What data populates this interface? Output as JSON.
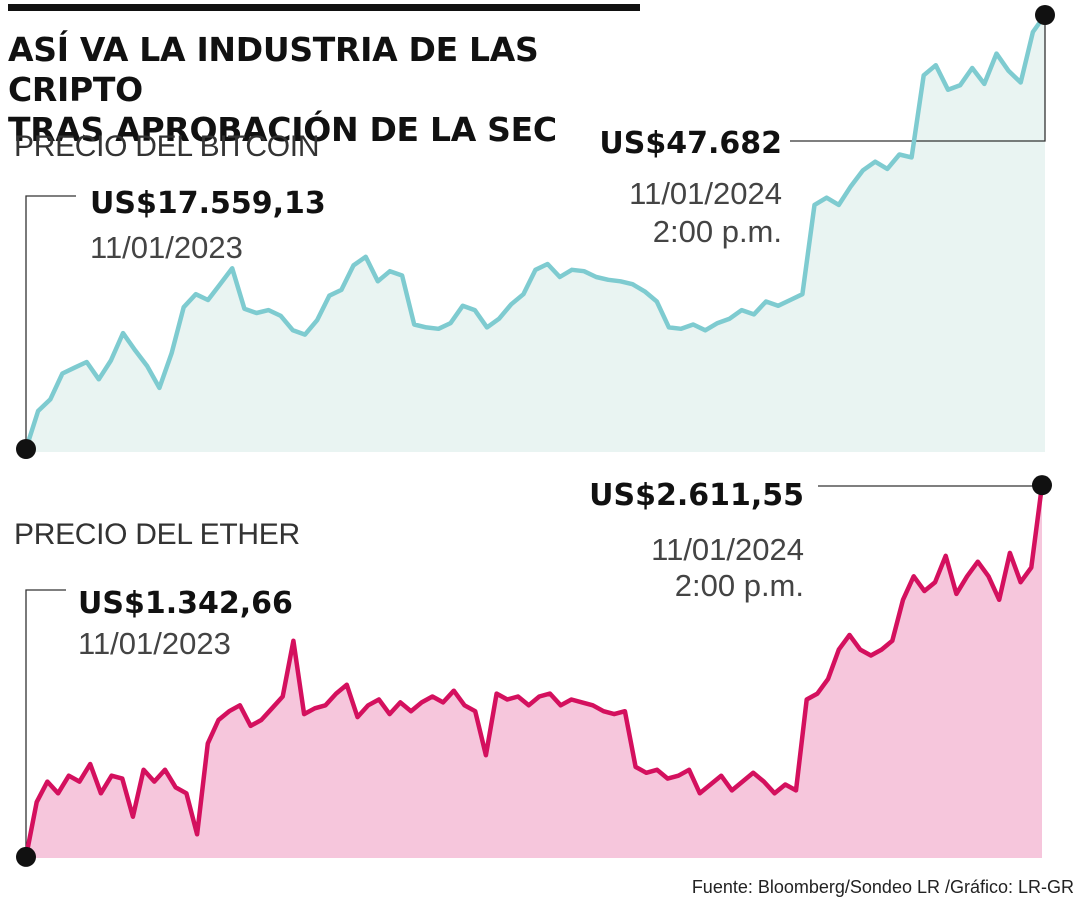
{
  "title": {
    "line1": "ASÍ VA LA INDUSTRIA DE LAS CRIPTO",
    "line2": "TRAS APROBACIÓN DE LA SEC"
  },
  "source": "Fuente: Bloomberg/Sondeo LR /Gráfico: LR-GR",
  "colors": {
    "bitcoin_line": "#7ecbd0",
    "bitcoin_fill": "#e9f4f2",
    "ether_line": "#d4105e",
    "ether_fill": "#f6c6dc",
    "marker": "#111111"
  },
  "chart_data": [
    {
      "type": "area",
      "title": "PRECIO DEL BITCOIN",
      "start": {
        "value": "US$17.559,13",
        "date": "11/01/2023"
      },
      "end": {
        "value": "US$47.682",
        "date": "11/01/2024",
        "time": "2:00 p.m."
      },
      "x_range": [
        "11/01/2023",
        "11/01/2024"
      ],
      "y_range": [
        17559.13,
        47682
      ],
      "values": [
        17559,
        20200,
        21000,
        22800,
        23200,
        23600,
        22400,
        23700,
        25600,
        24400,
        23300,
        21800,
        24200,
        27400,
        28300,
        27900,
        29000,
        30100,
        27300,
        27000,
        27200,
        26800,
        25800,
        25500,
        26500,
        28200,
        28600,
        30300,
        30900,
        29200,
        29900,
        29600,
        26200,
        26000,
        25900,
        26300,
        27500,
        27200,
        26000,
        26600,
        27600,
        28300,
        30000,
        30400,
        29500,
        30000,
        29900,
        29500,
        29300,
        29200,
        29000,
        28500,
        27800,
        26000,
        25900,
        26200,
        25800,
        26300,
        26600,
        27200,
        26900,
        27800,
        27500,
        27900,
        28300,
        34500,
        35000,
        34500,
        35800,
        36900,
        37500,
        37000,
        38000,
        37800,
        43500,
        44200,
        42500,
        42800,
        44000,
        42900,
        45000,
        43800,
        43000,
        46500,
        47682
      ]
    },
    {
      "type": "area",
      "title": "PRECIO DEL ETHER",
      "start": {
        "value": "US$1.342,66",
        "date": "11/01/2023"
      },
      "end": {
        "value": "US$2.611,55",
        "date": "11/01/2024",
        "time": "2:00 p.m."
      },
      "x_range": [
        "11/01/2023",
        "11/01/2024"
      ],
      "y_range": [
        1342.66,
        2611.55
      ],
      "values": [
        1343,
        1530,
        1600,
        1560,
        1620,
        1600,
        1660,
        1560,
        1620,
        1610,
        1480,
        1640,
        1600,
        1640,
        1580,
        1560,
        1420,
        1730,
        1810,
        1840,
        1860,
        1790,
        1810,
        1850,
        1890,
        2080,
        1830,
        1850,
        1860,
        1900,
        1930,
        1820,
        1860,
        1880,
        1830,
        1870,
        1840,
        1870,
        1890,
        1870,
        1910,
        1860,
        1840,
        1690,
        1900,
        1880,
        1890,
        1860,
        1890,
        1900,
        1860,
        1880,
        1870,
        1860,
        1840,
        1830,
        1840,
        1650,
        1630,
        1640,
        1610,
        1620,
        1640,
        1560,
        1590,
        1620,
        1570,
        1600,
        1630,
        1600,
        1560,
        1590,
        1570,
        1880,
        1900,
        1950,
        2050,
        2100,
        2050,
        2030,
        2050,
        2080,
        2220,
        2300,
        2250,
        2280,
        2370,
        2240,
        2300,
        2350,
        2300,
        2220,
        2380,
        2280,
        2330,
        2611
      ]
    }
  ]
}
